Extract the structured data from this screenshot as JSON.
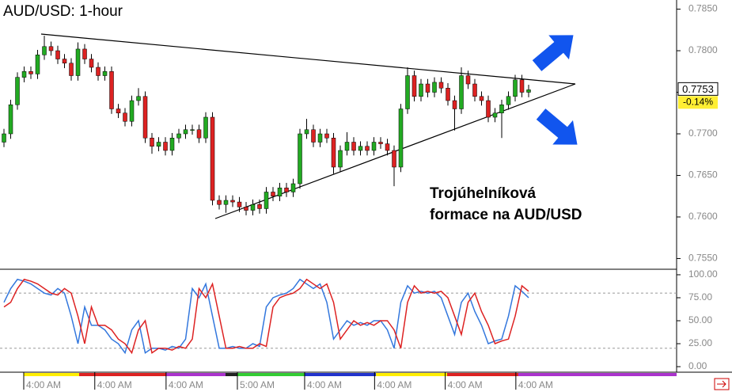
{
  "chart_data": [
    {
      "type": "candlestick",
      "title": "AUD/USD: 1-hour",
      "annotation": [
        "Trojúhelníková",
        "formace na AUD/USD"
      ],
      "price_tag": "0.7753",
      "change_tag": "-0.14%",
      "x": [
        0,
        1,
        2,
        3,
        4,
        5,
        6,
        7,
        8,
        9,
        10,
        11,
        12,
        13,
        14,
        15,
        16,
        17,
        18,
        19,
        20,
        21,
        22,
        23,
        24,
        25,
        26,
        27,
        28,
        29,
        30,
        31,
        32,
        33,
        34,
        35,
        36,
        37,
        38,
        39,
        40,
        41,
        42,
        43,
        44,
        45,
        46,
        47,
        48,
        49,
        50,
        51,
        52,
        53,
        54,
        55,
        56,
        57,
        58,
        59,
        60,
        61,
        62,
        63,
        64,
        65,
        66,
        67,
        68,
        69,
        70,
        71,
        72,
        73,
        74,
        75,
        76,
        77,
        78
      ],
      "open": [
        0.769,
        0.77,
        0.7735,
        0.7768,
        0.7775,
        0.7772,
        0.7795,
        0.7805,
        0.78,
        0.779,
        0.7785,
        0.777,
        0.7802,
        0.779,
        0.778,
        0.777,
        0.7775,
        0.773,
        0.7725,
        0.7715,
        0.774,
        0.7745,
        0.7695,
        0.7685,
        0.769,
        0.768,
        0.7695,
        0.77,
        0.7705,
        0.7705,
        0.7695,
        0.772,
        0.762,
        0.7615,
        0.762,
        0.7618,
        0.7612,
        0.7608,
        0.7615,
        0.761,
        0.763,
        0.7625,
        0.7635,
        0.763,
        0.764,
        0.77,
        0.7705,
        0.769,
        0.77,
        0.7695,
        0.766,
        0.768,
        0.769,
        0.768,
        0.7685,
        0.768,
        0.769,
        0.7688,
        0.768,
        0.766,
        0.773,
        0.777,
        0.7745,
        0.776,
        0.775,
        0.7762,
        0.7755,
        0.774,
        0.773,
        0.777,
        0.776,
        0.7745,
        0.774,
        0.772,
        0.7725,
        0.7735,
        0.7745,
        0.7765,
        0.775
      ],
      "high": [
        0.7706,
        0.7741,
        0.7774,
        0.7781,
        0.7781,
        0.7801,
        0.7818,
        0.7811,
        0.7806,
        0.7796,
        0.7791,
        0.781,
        0.7808,
        0.7796,
        0.7786,
        0.7781,
        0.7781,
        0.7736,
        0.7731,
        0.7746,
        0.7755,
        0.7751,
        0.7701,
        0.7696,
        0.7696,
        0.7701,
        0.7706,
        0.7711,
        0.7711,
        0.7711,
        0.7726,
        0.7726,
        0.7626,
        0.7626,
        0.7626,
        0.7624,
        0.7618,
        0.7621,
        0.7621,
        0.7636,
        0.7636,
        0.7641,
        0.7641,
        0.7646,
        0.7706,
        0.7718,
        0.7711,
        0.7706,
        0.7706,
        0.7701,
        0.7686,
        0.7702,
        0.7696,
        0.7691,
        0.7691,
        0.7696,
        0.7696,
        0.7694,
        0.7686,
        0.7736,
        0.778,
        0.7776,
        0.7766,
        0.7766,
        0.7768,
        0.7768,
        0.7761,
        0.7746,
        0.778,
        0.7776,
        0.7766,
        0.7751,
        0.7746,
        0.7731,
        0.7741,
        0.7751,
        0.7771,
        0.7771,
        0.7759
      ],
      "low": [
        0.7684,
        0.7694,
        0.7729,
        0.7762,
        0.7766,
        0.7766,
        0.7789,
        0.7794,
        0.7784,
        0.7779,
        0.7764,
        0.7764,
        0.7784,
        0.7774,
        0.7764,
        0.7764,
        0.7724,
        0.7719,
        0.7709,
        0.7709,
        0.7734,
        0.7689,
        0.7676,
        0.7679,
        0.7674,
        0.7674,
        0.7689,
        0.7694,
        0.7699,
        0.7689,
        0.7689,
        0.7614,
        0.7609,
        0.7605,
        0.7612,
        0.7606,
        0.7602,
        0.7602,
        0.7604,
        0.7604,
        0.7619,
        0.7619,
        0.7624,
        0.7624,
        0.7634,
        0.7694,
        0.7684,
        0.7684,
        0.7689,
        0.7652,
        0.7654,
        0.7674,
        0.7674,
        0.7674,
        0.7674,
        0.7674,
        0.7682,
        0.7674,
        0.7637,
        0.7654,
        0.7724,
        0.7739,
        0.7739,
        0.7744,
        0.7744,
        0.7749,
        0.7734,
        0.7704,
        0.7724,
        0.7754,
        0.7739,
        0.7734,
        0.7714,
        0.7714,
        0.7695,
        0.7729,
        0.7739,
        0.7744,
        0.7744
      ],
      "close": [
        0.77,
        0.7735,
        0.7768,
        0.7775,
        0.7772,
        0.7795,
        0.7805,
        0.78,
        0.779,
        0.7785,
        0.777,
        0.7802,
        0.779,
        0.778,
        0.777,
        0.7775,
        0.773,
        0.7725,
        0.7715,
        0.774,
        0.7745,
        0.7695,
        0.7685,
        0.769,
        0.768,
        0.7695,
        0.77,
        0.7705,
        0.7705,
        0.7695,
        0.772,
        0.762,
        0.7615,
        0.762,
        0.7618,
        0.7612,
        0.7608,
        0.7615,
        0.761,
        0.763,
        0.7625,
        0.7635,
        0.763,
        0.764,
        0.77,
        0.7705,
        0.769,
        0.77,
        0.7695,
        0.766,
        0.768,
        0.769,
        0.768,
        0.7685,
        0.768,
        0.769,
        0.7688,
        0.768,
        0.766,
        0.773,
        0.777,
        0.7745,
        0.776,
        0.775,
        0.7762,
        0.7755,
        0.774,
        0.773,
        0.777,
        0.776,
        0.7745,
        0.774,
        0.772,
        0.7725,
        0.7735,
        0.7745,
        0.7765,
        0.775,
        0.7753
      ],
      "up_color": "#22aa22",
      "down_color": "#dd2222",
      "xlim": [
        -0.59,
        100
      ],
      "xticks": [
        {
          "value": 2.94,
          "label": "4:00 AM"
        },
        {
          "value": 13.5,
          "label": "4:00 AM"
        },
        {
          "value": 24.1,
          "label": "4:00 AM"
        },
        {
          "value": 34.7,
          "label": "5:00 AM"
        },
        {
          "value": 44.7,
          "label": "4:00 AM"
        },
        {
          "value": 55.1,
          "label": "4:00 AM"
        },
        {
          "value": 65.6,
          "label": "4:00 AM"
        },
        {
          "value": 76.1,
          "label": "4:00 AM"
        }
      ],
      "ylim": [
        0.7539,
        0.7861
      ],
      "yticks": [
        {
          "value": 0.785,
          "label": "0.7850"
        },
        {
          "value": 0.78,
          "label": "0.7800"
        },
        {
          "value": 0.775,
          "label": "0.7750"
        },
        {
          "value": 0.77,
          "label": "0.7700"
        },
        {
          "value": 0.765,
          "label": "0.7650"
        },
        {
          "value": 0.76,
          "label": "0.7600"
        },
        {
          "value": 0.755,
          "label": "0.7550"
        }
      ]
    },
    {
      "type": "line",
      "x": [
        0,
        1,
        2,
        3,
        4,
        5,
        6,
        7,
        8,
        9,
        10,
        11,
        12,
        13,
        14,
        15,
        16,
        17,
        18,
        19,
        20,
        21,
        22,
        23,
        24,
        25,
        26,
        27,
        28,
        29,
        30,
        31,
        32,
        33,
        34,
        35,
        36,
        37,
        38,
        39,
        40,
        41,
        42,
        43,
        44,
        45,
        46,
        47,
        48,
        49,
        50,
        51,
        52,
        53,
        54,
        55,
        56,
        57,
        58,
        59,
        60,
        61,
        62,
        63,
        64,
        65,
        66,
        67,
        68,
        69,
        70,
        71,
        72,
        73,
        74,
        75,
        76,
        77,
        78
      ],
      "series": [
        {
          "color": "#3377dd",
          "values": [
            70,
            85,
            95,
            93,
            90,
            85,
            80,
            78,
            85,
            80,
            55,
            25,
            65,
            45,
            45,
            40,
            30,
            25,
            15,
            40,
            50,
            15,
            20,
            20,
            18,
            22,
            20,
            30,
            85,
            75,
            90,
            55,
            20,
            20,
            22,
            20,
            20,
            25,
            22,
            65,
            75,
            78,
            80,
            85,
            95,
            90,
            85,
            90,
            70,
            30,
            40,
            50,
            45,
            48,
            45,
            50,
            50,
            40,
            20,
            70,
            88,
            80,
            82,
            80,
            82,
            75,
            55,
            35,
            70,
            80,
            60,
            45,
            25,
            28,
            30,
            55,
            88,
            82,
            75
          ]
        },
        {
          "color": "#dd2222",
          "values": [
            65,
            70,
            85,
            95,
            93,
            90,
            85,
            80,
            78,
            85,
            80,
            55,
            25,
            65,
            45,
            45,
            40,
            30,
            25,
            15,
            40,
            50,
            15,
            20,
            20,
            18,
            22,
            20,
            30,
            85,
            75,
            90,
            55,
            20,
            20,
            22,
            20,
            20,
            25,
            22,
            65,
            75,
            78,
            80,
            85,
            95,
            90,
            85,
            90,
            70,
            30,
            40,
            50,
            45,
            48,
            45,
            50,
            50,
            40,
            20,
            70,
            88,
            80,
            82,
            80,
            82,
            75,
            55,
            35,
            70,
            80,
            60,
            45,
            25,
            28,
            30,
            55,
            88,
            82
          ]
        }
      ],
      "xlim": [
        -0.59,
        100
      ],
      "ylim": [
        -4.3,
        106
      ],
      "yticks": [
        {
          "value": 100,
          "label": "100.00"
        },
        {
          "value": 75,
          "label": "75.00"
        },
        {
          "value": 50,
          "label": "50.00"
        },
        {
          "value": 25,
          "label": "25.00"
        },
        {
          "value": 0,
          "label": "0.00"
        }
      ],
      "ref_lines": [
        80,
        20
      ]
    }
  ]
}
